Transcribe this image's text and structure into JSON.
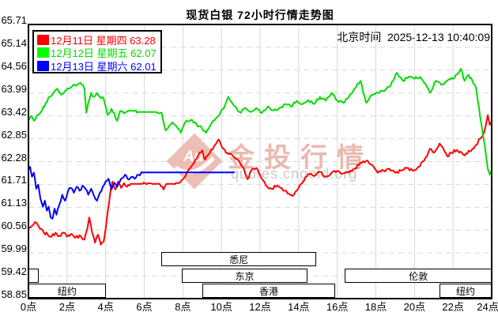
{
  "title": "现货白银 72小时行情走势图",
  "beijing_time_label": "北京时间",
  "beijing_time_value": "2025-12-13 10:40:09",
  "colors": {
    "background": "#ffffff",
    "frame": "#000000",
    "grid": "#d8d8d8",
    "red_series": "#ff0000",
    "green_series": "#00dd00",
    "blue_series": "#0000ff",
    "watermark_pink": "#e9b6ab",
    "watermark_gray": "#c9c9c9"
  },
  "legend": [
    {
      "date": "12月11日",
      "weekday": "星期四",
      "value": "63.28",
      "swatch": "#ff0000",
      "text_color": "#ff0000"
    },
    {
      "date": "12月12日",
      "weekday": "星期五",
      "value": "62.07",
      "swatch": "#00ff00",
      "text_color": "#00dd00"
    },
    {
      "date": "12月13日",
      "weekday": "星期六",
      "value": "62.01",
      "swatch": "#0000ff",
      "text_color": "#0000ff"
    }
  ],
  "sessions": [
    {
      "label": "纽约",
      "start": 0,
      "end": 4.0,
      "row": 2
    },
    {
      "label": "",
      "start": 0,
      "end": 0.55,
      "row": 1
    },
    {
      "label": "悉尼",
      "start": 6.9,
      "end": 14.9,
      "row": 0
    },
    {
      "label": "东京",
      "start": 7.95,
      "end": 14.45,
      "row": 1
    },
    {
      "label": "香港",
      "start": 9.0,
      "end": 15.9,
      "row": 2
    },
    {
      "label": "伦敦",
      "start": 16.4,
      "end": 24,
      "row": 1
    },
    {
      "label": "纽约",
      "start": 21.3,
      "end": 24,
      "row": 2
    }
  ],
  "watermark": {
    "logo_text": "Au",
    "brand": "金投行情",
    "url": "quotes.cngold.org"
  },
  "chart_data": {
    "type": "line",
    "title": "现货白银 72小时行情走势图",
    "x_unit": "hour (Beijing time)",
    "xlim": [
      0,
      24
    ],
    "ylim": [
      58.85,
      65.71
    ],
    "grid": true,
    "x_ticks": [
      "0点",
      "2点",
      "4点",
      "6点",
      "8点",
      "10点",
      "12点",
      "14点",
      "16点",
      "18点",
      "20点",
      "22点",
      "24点"
    ],
    "y_ticks": [
      "65.71",
      "65.14",
      "64.56",
      "63.99",
      "63.42",
      "62.85",
      "62.28",
      "61.71",
      "61.13",
      "60.56",
      "59.99",
      "59.42",
      "58.85"
    ],
    "series": [
      {
        "name": "12月11日 星期四",
        "close": 63.28,
        "color": "#ff0000",
        "seed": 7,
        "points": [
          [
            0,
            60.6
          ],
          [
            0.2,
            60.68
          ],
          [
            0.4,
            60.75
          ],
          [
            0.6,
            60.6
          ],
          [
            0.8,
            60.5
          ],
          [
            1.0,
            60.45
          ],
          [
            1.2,
            60.4
          ],
          [
            1.4,
            60.5
          ],
          [
            1.6,
            60.42
          ],
          [
            1.8,
            60.5
          ],
          [
            2.0,
            60.4
          ],
          [
            2.2,
            60.47
          ],
          [
            2.45,
            60.38
          ],
          [
            2.7,
            60.42
          ],
          [
            2.9,
            60.33
          ],
          [
            3.05,
            60.6
          ],
          [
            3.15,
            60.88
          ],
          [
            3.3,
            60.5
          ],
          [
            3.45,
            60.25
          ],
          [
            3.6,
            60.45
          ],
          [
            3.75,
            60.2
          ],
          [
            3.9,
            60.28
          ],
          [
            4.0,
            60.6
          ],
          [
            4.1,
            61.0
          ],
          [
            4.25,
            61.55
          ],
          [
            4.35,
            61.78
          ],
          [
            4.5,
            61.58
          ],
          [
            4.65,
            61.78
          ],
          [
            4.8,
            61.62
          ],
          [
            4.95,
            61.74
          ],
          [
            5.1,
            61.65
          ],
          [
            5.3,
            61.72
          ],
          [
            5.6,
            61.72
          ],
          [
            5.9,
            61.72
          ],
          [
            6.2,
            61.74
          ],
          [
            6.5,
            61.72
          ],
          [
            6.8,
            61.72
          ],
          [
            7.0,
            61.58
          ],
          [
            7.15,
            61.72
          ],
          [
            7.5,
            61.72
          ],
          [
            7.8,
            61.74
          ],
          [
            8.0,
            61.84
          ],
          [
            8.2,
            62.0
          ],
          [
            8.5,
            62.2
          ],
          [
            8.8,
            62.45
          ],
          [
            9.0,
            62.56
          ],
          [
            9.15,
            62.33
          ],
          [
            9.4,
            62.5
          ],
          [
            9.6,
            62.65
          ],
          [
            9.85,
            62.83
          ],
          [
            10.1,
            62.6
          ],
          [
            10.3,
            62.5
          ],
          [
            10.6,
            62.42
          ],
          [
            10.9,
            62.3
          ],
          [
            11.1,
            62.15
          ],
          [
            11.35,
            61.84
          ],
          [
            11.6,
            62.1
          ],
          [
            11.8,
            62.12
          ],
          [
            12.0,
            61.95
          ],
          [
            12.3,
            61.68
          ],
          [
            12.6,
            61.6
          ],
          [
            12.9,
            61.68
          ],
          [
            13.2,
            61.55
          ],
          [
            13.5,
            61.48
          ],
          [
            13.7,
            61.42
          ],
          [
            13.9,
            61.55
          ],
          [
            14.2,
            61.75
          ],
          [
            14.5,
            61.97
          ],
          [
            14.8,
            61.92
          ],
          [
            15.1,
            62.02
          ],
          [
            15.4,
            61.9
          ],
          [
            15.7,
            62.0
          ],
          [
            16.0,
            62.05
          ],
          [
            16.3,
            61.98
          ],
          [
            16.6,
            62.0
          ],
          [
            16.9,
            62.1
          ],
          [
            17.2,
            62.25
          ],
          [
            17.5,
            62.3
          ],
          [
            17.8,
            62.2
          ],
          [
            18.1,
            62.0
          ],
          [
            18.4,
            62.05
          ],
          [
            18.7,
            62.1
          ],
          [
            19.0,
            62.0
          ],
          [
            19.3,
            62.05
          ],
          [
            19.6,
            62.12
          ],
          [
            19.9,
            62.05
          ],
          [
            20.2,
            62.15
          ],
          [
            20.5,
            62.3
          ],
          [
            20.8,
            62.6
          ],
          [
            21.0,
            62.5
          ],
          [
            21.3,
            62.73
          ],
          [
            21.5,
            62.6
          ],
          [
            21.7,
            62.41
          ],
          [
            21.9,
            62.5
          ],
          [
            22.2,
            62.57
          ],
          [
            22.45,
            62.5
          ],
          [
            22.6,
            62.43
          ],
          [
            22.8,
            62.55
          ],
          [
            23.0,
            62.6
          ],
          [
            23.2,
            62.7
          ],
          [
            23.4,
            62.85
          ],
          [
            23.6,
            63.0
          ],
          [
            23.8,
            63.44
          ],
          [
            23.9,
            63.2
          ],
          [
            24,
            63.28
          ]
        ]
      },
      {
        "name": "12月12日 星期五",
        "close": 62.07,
        "color": "#00dd00",
        "seed": 13,
        "points": [
          [
            0,
            63.3
          ],
          [
            0.15,
            63.42
          ],
          [
            0.3,
            63.3
          ],
          [
            0.5,
            63.45
          ],
          [
            0.7,
            63.55
          ],
          [
            0.9,
            63.75
          ],
          [
            1.1,
            63.9
          ],
          [
            1.3,
            64.0
          ],
          [
            1.5,
            64.1
          ],
          [
            1.7,
            63.95
          ],
          [
            1.9,
            64.05
          ],
          [
            2.1,
            64.1
          ],
          [
            2.4,
            64.2
          ],
          [
            2.7,
            64.25
          ],
          [
            2.9,
            64.1
          ],
          [
            3.0,
            63.5
          ],
          [
            3.1,
            63.75
          ],
          [
            3.25,
            64.0
          ],
          [
            3.4,
            63.9
          ],
          [
            3.55,
            64.0
          ],
          [
            3.7,
            63.9
          ],
          [
            3.9,
            63.85
          ],
          [
            4.1,
            63.45
          ],
          [
            4.3,
            63.6
          ],
          [
            4.6,
            63.3
          ],
          [
            4.75,
            63.55
          ],
          [
            5.0,
            63.5
          ],
          [
            5.3,
            63.55
          ],
          [
            5.7,
            63.52
          ],
          [
            6.2,
            63.52
          ],
          [
            6.6,
            63.52
          ],
          [
            6.9,
            63.5
          ],
          [
            7.1,
            63.06
          ],
          [
            7.3,
            63.18
          ],
          [
            7.45,
            63.26
          ],
          [
            7.6,
            63.2
          ],
          [
            7.9,
            63.0
          ],
          [
            8.1,
            63.25
          ],
          [
            8.4,
            63.32
          ],
          [
            8.7,
            63.22
          ],
          [
            9.0,
            63.1
          ],
          [
            9.2,
            63.0
          ],
          [
            9.5,
            63.25
          ],
          [
            9.8,
            63.4
          ],
          [
            10.1,
            63.6
          ],
          [
            10.35,
            63.9
          ],
          [
            10.55,
            63.75
          ],
          [
            10.8,
            63.6
          ],
          [
            11.0,
            63.5
          ],
          [
            11.2,
            63.62
          ],
          [
            11.5,
            63.52
          ],
          [
            11.8,
            63.62
          ],
          [
            12.1,
            63.5
          ],
          [
            12.4,
            63.66
          ],
          [
            12.7,
            63.56
          ],
          [
            13.0,
            63.62
          ],
          [
            13.3,
            63.72
          ],
          [
            13.6,
            63.66
          ],
          [
            13.9,
            63.8
          ],
          [
            14.2,
            63.72
          ],
          [
            14.5,
            63.82
          ],
          [
            14.8,
            63.72
          ],
          [
            15.1,
            63.9
          ],
          [
            15.4,
            63.8
          ],
          [
            15.7,
            64.0
          ],
          [
            16.0,
            63.8
          ],
          [
            16.3,
            63.75
          ],
          [
            16.6,
            63.9
          ],
          [
            16.9,
            64.1
          ],
          [
            17.2,
            64.3
          ],
          [
            17.5,
            63.75
          ],
          [
            17.8,
            63.95
          ],
          [
            18.1,
            64.0
          ],
          [
            18.4,
            64.05
          ],
          [
            18.7,
            64.15
          ],
          [
            19.1,
            64.5
          ],
          [
            19.4,
            64.3
          ],
          [
            19.7,
            64.4
          ],
          [
            20.0,
            64.35
          ],
          [
            20.3,
            64.4
          ],
          [
            20.6,
            64.2
          ],
          [
            20.8,
            64.0
          ],
          [
            21.1,
            64.3
          ],
          [
            21.4,
            64.2
          ],
          [
            21.7,
            64.3
          ],
          [
            22.0,
            64.35
          ],
          [
            22.4,
            64.6
          ],
          [
            22.6,
            64.3
          ],
          [
            22.8,
            64.45
          ],
          [
            23.0,
            64.3
          ],
          [
            23.2,
            64.1
          ],
          [
            23.4,
            63.4
          ],
          [
            23.6,
            62.8
          ],
          [
            23.8,
            62.1
          ],
          [
            23.9,
            61.95
          ],
          [
            24,
            62.07
          ]
        ]
      },
      {
        "name": "12月13日 星期六",
        "close": 62.01,
        "color": "#0000ff",
        "seed": 29,
        "points": [
          [
            0,
            62.07
          ],
          [
            0.08,
            62.15
          ],
          [
            0.18,
            61.9
          ],
          [
            0.28,
            62.0
          ],
          [
            0.4,
            61.6
          ],
          [
            0.5,
            61.7
          ],
          [
            0.62,
            61.35
          ],
          [
            0.75,
            61.15
          ],
          [
            0.85,
            61.3
          ],
          [
            0.95,
            61.05
          ],
          [
            1.05,
            61.15
          ],
          [
            1.15,
            60.88
          ],
          [
            1.25,
            60.85
          ],
          [
            1.35,
            61.1
          ],
          [
            1.45,
            60.95
          ],
          [
            1.6,
            61.2
          ],
          [
            1.75,
            61.45
          ],
          [
            1.9,
            61.3
          ],
          [
            2.05,
            61.55
          ],
          [
            2.2,
            61.62
          ],
          [
            2.35,
            61.5
          ],
          [
            2.5,
            61.65
          ],
          [
            2.65,
            61.55
          ],
          [
            2.8,
            61.68
          ],
          [
            2.95,
            61.6
          ],
          [
            3.1,
            61.45
          ],
          [
            3.25,
            61.6
          ],
          [
            3.4,
            61.42
          ],
          [
            3.55,
            61.3
          ],
          [
            3.7,
            61.5
          ],
          [
            3.85,
            61.65
          ],
          [
            4.0,
            61.78
          ],
          [
            4.15,
            61.85
          ],
          [
            4.3,
            61.58
          ],
          [
            4.45,
            61.75
          ],
          [
            4.6,
            61.65
          ],
          [
            4.8,
            61.85
          ],
          [
            5.0,
            61.95
          ],
          [
            5.2,
            61.83
          ],
          [
            5.35,
            61.9
          ],
          [
            5.5,
            61.85
          ],
          [
            5.7,
            61.95
          ],
          [
            6.0,
            62.01
          ],
          [
            10.65,
            62.01
          ]
        ]
      }
    ]
  }
}
